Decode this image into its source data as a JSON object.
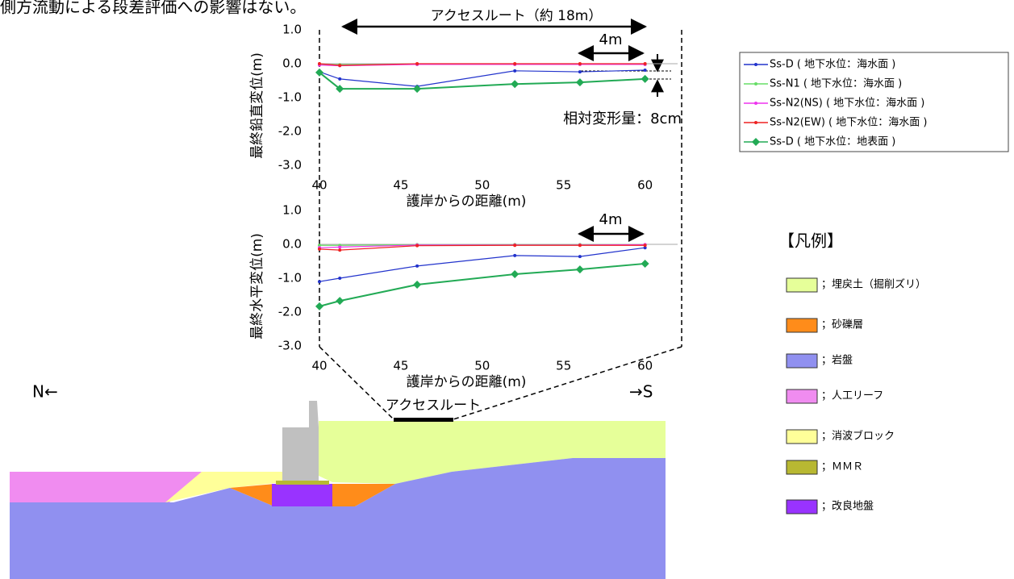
{
  "header": {
    "text": "側方流動による段差評価への影響はない。"
  },
  "chart_data": [
    {
      "type": "line",
      "y_label": "最終鉛直変位(m)",
      "x_label": "護岸からの距離(m)",
      "x": [
        40,
        41.25,
        46,
        52,
        56,
        60
      ],
      "xlim": [
        40,
        62
      ],
      "xticks": [
        40,
        45,
        50,
        55,
        60
      ],
      "ylim": [
        -3,
        1
      ],
      "yticks": [
        {
          "value": 1,
          "label": "1.0"
        },
        {
          "value": 0,
          "label": "0.0"
        },
        {
          "value": -1,
          "label": "-1.0"
        },
        {
          "value": -2,
          "label": "-2.0"
        },
        {
          "value": -3,
          "label": "-3.0"
        }
      ],
      "series": [
        {
          "name": "Ss-D ( 地下水位：海水面 )",
          "color": "#2233cc",
          "marker": "circle",
          "values": [
            -0.24,
            -0.45,
            -0.67,
            -0.21,
            -0.24,
            -0.19
          ]
        },
        {
          "name": "Ss-N1 ( 地下水位：海水面 )",
          "color": "#66dd66",
          "marker": "circle",
          "values": [
            -0.03,
            -0.03,
            -0.02,
            -0.02,
            -0.02,
            -0.02
          ]
        },
        {
          "name": "Ss-N2(NS) ( 地下水位：海水面 )",
          "color": "#ee33ee",
          "marker": "circle",
          "values": [
            -0.04,
            -0.06,
            -0.02,
            -0.02,
            -0.02,
            -0.02
          ]
        },
        {
          "name": "Ss-N2(EW) ( 地下水位：海水面 )",
          "color": "#ee2222",
          "marker": "circle",
          "values": [
            0.0,
            -0.05,
            0.0,
            0.0,
            0.0,
            0.0
          ]
        },
        {
          "name": "Ss-D ( 地下水位：地表面 )",
          "color": "#22aa55",
          "marker": "diamond",
          "values": [
            -0.26,
            -0.74,
            -0.74,
            -0.6,
            -0.55,
            -0.45
          ]
        }
      ]
    },
    {
      "type": "line",
      "y_label": "最終水平変位(m)",
      "x_label": "護岸からの距離(m)",
      "x": [
        40,
        41.25,
        46,
        52,
        56,
        60
      ],
      "xlim": [
        40,
        62
      ],
      "xticks": [
        40,
        45,
        50,
        55,
        60
      ],
      "ylim": [
        -3,
        1
      ],
      "yticks": [
        {
          "value": 1,
          "label": "1.0"
        },
        {
          "value": 0,
          "label": "0.0"
        },
        {
          "value": -1,
          "label": "-1.0"
        },
        {
          "value": -2,
          "label": "-2.0"
        },
        {
          "value": -3,
          "label": "-3.0"
        }
      ],
      "series": [
        {
          "color": "#2233cc",
          "marker": "circle",
          "values": [
            -1.1,
            -1.0,
            -0.64,
            -0.33,
            -0.36,
            -0.1
          ]
        },
        {
          "color": "#66dd66",
          "marker": "circle",
          "values": [
            -0.03,
            -0.03,
            -0.01,
            -0.01,
            -0.01,
            -0.01
          ]
        },
        {
          "color": "#ee33ee",
          "marker": "circle",
          "values": [
            -0.1,
            -0.08,
            -0.02,
            -0.02,
            -0.02,
            -0.01
          ]
        },
        {
          "color": "#ee2222",
          "marker": "circle",
          "values": [
            -0.14,
            -0.17,
            -0.04,
            -0.03,
            -0.03,
            -0.03
          ]
        },
        {
          "color": "#22aa55",
          "marker": "diamond",
          "values": [
            -1.83,
            -1.67,
            -1.19,
            -0.88,
            -0.74,
            -0.57
          ]
        }
      ]
    }
  ],
  "annotations": {
    "access_route_span": "アクセスルート（約 18m）",
    "span_top": "4m",
    "relative_deformation": "相対変形量：8cm",
    "span_bottom": "4m",
    "north": "N←",
    "south": "→S",
    "access_route": "アクセスルート"
  },
  "strata_legend": {
    "title": "【凡例】",
    "items": [
      {
        "label": "；埋戻土（掘削ズリ）",
        "color": "#e6ff99"
      },
      {
        "label": "；砂礫層",
        "color": "#ff8c1a"
      },
      {
        "label": "；岩盤",
        "color": "#9090f0"
      },
      {
        "label": "；人工リーフ",
        "color": "#f08cf0"
      },
      {
        "label": "；消波ブロック",
        "color": "#ffff99"
      },
      {
        "label": "；ＭＭＲ",
        "color": "#b8b832"
      },
      {
        "label": "；改良地盤",
        "color": "#9933ff"
      }
    ]
  }
}
